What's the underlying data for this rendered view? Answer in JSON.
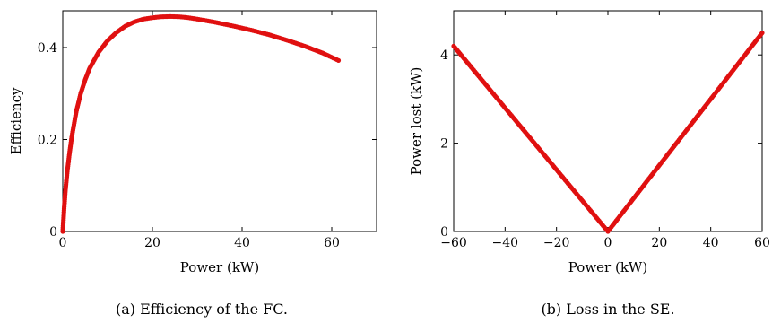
{
  "chart_data": [
    {
      "type": "scatter",
      "xlabel": "Power (kW)",
      "ylabel": "Efficiency",
      "xlim": [
        0,
        70
      ],
      "ylim": [
        0,
        0.48
      ],
      "xticks": [
        0,
        20,
        40,
        60
      ],
      "yticks": [
        0,
        0.2,
        0.4
      ],
      "xtick_labels": [
        "0",
        "20",
        "40",
        "60"
      ],
      "ytick_labels": [
        "0",
        "0.2",
        "0.4"
      ],
      "series": [
        {
          "color": "#e01010",
          "points": [
            [
              0.0,
              0.0
            ],
            [
              0.3,
              0.05
            ],
            [
              0.6,
              0.09
            ],
            [
              1.0,
              0.13
            ],
            [
              1.5,
              0.17
            ],
            [
              2.0,
              0.205
            ],
            [
              3.0,
              0.26
            ],
            [
              4.0,
              0.3
            ],
            [
              5.0,
              0.33
            ],
            [
              6.0,
              0.355
            ],
            [
              8.0,
              0.39
            ],
            [
              10.0,
              0.415
            ],
            [
              12.0,
              0.433
            ],
            [
              14.0,
              0.447
            ],
            [
              16.0,
              0.456
            ],
            [
              18.0,
              0.462
            ],
            [
              20.0,
              0.465
            ],
            [
              22.0,
              0.467
            ],
            [
              24.0,
              0.4675
            ],
            [
              26.0,
              0.467
            ],
            [
              28.0,
              0.465
            ],
            [
              30.0,
              0.462
            ],
            [
              34.0,
              0.455
            ],
            [
              38.0,
              0.447
            ],
            [
              42.0,
              0.438
            ],
            [
              46.0,
              0.428
            ],
            [
              50.0,
              0.416
            ],
            [
              54.0,
              0.403
            ],
            [
              58.0,
              0.388
            ],
            [
              61.5,
              0.372
            ]
          ]
        }
      ],
      "caption": "(a) Efficiency of the FC."
    },
    {
      "type": "scatter",
      "xlabel": "Power (kW)",
      "ylabel": "Power lost (kW)",
      "xlim": [
        -60,
        60
      ],
      "ylim": [
        0,
        5
      ],
      "xticks": [
        -60,
        -40,
        -20,
        0,
        20,
        40,
        60
      ],
      "yticks": [
        0,
        2,
        4
      ],
      "xtick_labels": [
        "−60",
        "−40",
        "−20",
        "0",
        "20",
        "40",
        "60"
      ],
      "ytick_labels": [
        "0",
        "2",
        "4"
      ],
      "series": [
        {
          "color": "#e01010",
          "points": [
            [
              -60,
              4.2
            ],
            [
              0,
              0.0
            ],
            [
              60,
              4.5
            ]
          ]
        }
      ],
      "caption": "(b) Loss in the SE."
    }
  ]
}
